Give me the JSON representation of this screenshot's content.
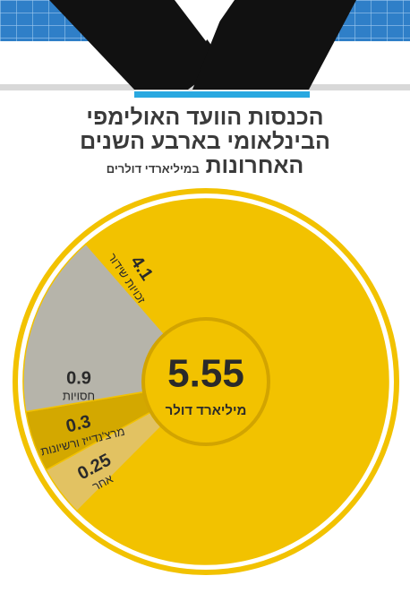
{
  "chart_data": {
    "type": "pie",
    "title": [
      "הכנסות הוועד האולימפי",
      "הבינלאומי בארבע השנים",
      "האחרונות"
    ],
    "subtitle": "במיליארדי דולרים",
    "categories": [
      "זכויות שידור",
      "אחר",
      "מרצ'נדייז ורשיונות",
      "חסויות"
    ],
    "values": [
      4.1,
      0.25,
      0.3,
      0.9
    ],
    "colors": [
      "#f2c200",
      "#e2c262",
      "#d3a800",
      "#b6b4aa"
    ],
    "center_value": 5.55,
    "center_label": "מיליארד דולר"
  }
}
